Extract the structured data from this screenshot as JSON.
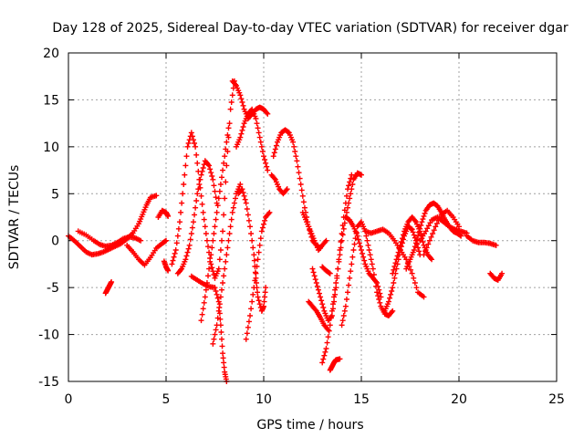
{
  "chart_data": {
    "type": "scatter",
    "title": "Day 128 of 2025, Sidereal Day-to-day VTEC variation (SDTVAR) for receiver dgar",
    "xlabel": "GPS time / hours",
    "ylabel": "SDTVAR / TECUs",
    "xlim": [
      0,
      25
    ],
    "ylim": [
      -15,
      20
    ],
    "xticks": [
      0,
      5,
      10,
      15,
      20,
      25
    ],
    "yticks": [
      -15,
      -10,
      -5,
      0,
      5,
      10,
      15,
      20
    ],
    "grid": true,
    "marker": "+",
    "series_color": "#ff0000",
    "series": [
      {
        "name": "t1",
        "x": [
          0.0,
          0.3,
          0.6,
          0.9,
          1.2,
          1.5,
          1.8,
          2.1,
          2.4,
          2.7,
          3.0,
          3.3,
          3.6,
          3.8,
          4.0,
          4.2,
          4.5
        ],
        "y": [
          0.5,
          0.0,
          -0.6,
          -1.2,
          -1.5,
          -1.4,
          -1.2,
          -0.9,
          -0.6,
          -0.3,
          0.2,
          0.8,
          1.8,
          2.8,
          3.8,
          4.6,
          4.8
        ]
      },
      {
        "name": "t2",
        "x": [
          0.5,
          0.9,
          1.3,
          1.6,
          1.9,
          2.2,
          2.5,
          2.8,
          3.1,
          3.4,
          3.7
        ],
        "y": [
          1.0,
          0.6,
          0.0,
          -0.4,
          -0.6,
          -0.5,
          -0.2,
          0.2,
          0.4,
          0.3,
          0.0
        ]
      },
      {
        "name": "t3",
        "x": [
          1.9,
          2.0,
          2.1,
          2.2
        ],
        "y": [
          -5.6,
          -5.2,
          -4.8,
          -4.4
        ]
      },
      {
        "name": "t4",
        "x": [
          3.0,
          3.3,
          3.6,
          3.9,
          4.2,
          4.5,
          4.8,
          5.0
        ],
        "y": [
          -0.5,
          -1.2,
          -2.0,
          -2.6,
          -1.8,
          -0.8,
          -0.3,
          0.0
        ]
      },
      {
        "name": "t5",
        "x": [
          4.6,
          4.8,
          5.0,
          5.1
        ],
        "y": [
          2.5,
          3.2,
          3.0,
          2.6
        ]
      },
      {
        "name": "t6",
        "x": [
          4.9,
          5.0,
          5.1
        ],
        "y": [
          -2.2,
          -2.8,
          -3.2
        ]
      },
      {
        "name": "t7",
        "x": [
          5.3,
          5.5,
          5.7,
          5.9,
          6.1,
          6.3,
          6.5,
          6.7,
          6.9,
          7.1,
          7.3,
          7.5,
          7.7,
          7.9,
          8.1,
          8.3,
          8.5
        ],
        "y": [
          -2.5,
          -1.0,
          2.0,
          6.0,
          10.0,
          11.5,
          10.0,
          6.5,
          3.0,
          0.0,
          -2.5,
          -4.0,
          -3.0,
          1.0,
          8.0,
          14.0,
          17.0
        ]
      },
      {
        "name": "t8",
        "x": [
          5.6,
          5.8,
          6.0,
          6.2,
          6.4,
          6.6,
          6.8,
          7.0,
          7.2,
          7.4,
          7.6
        ],
        "y": [
          -3.5,
          -3.0,
          -2.0,
          -0.5,
          2.0,
          5.0,
          7.0,
          8.5,
          8.0,
          6.5,
          4.0
        ]
      },
      {
        "name": "t9",
        "x": [
          6.3,
          6.6,
          6.9,
          7.2,
          7.5,
          7.7,
          7.8,
          7.9,
          8.0,
          8.1
        ],
        "y": [
          -3.8,
          -4.2,
          -4.6,
          -4.9,
          -5.0,
          -6.5,
          -9.0,
          -12.0,
          -14.0,
          -15.0
        ]
      },
      {
        "name": "t10",
        "x": [
          6.8,
          7.0,
          7.2,
          7.4,
          7.6,
          7.8,
          8.0,
          8.2
        ],
        "y": [
          -8.5,
          -6.0,
          -3.0,
          0.0,
          3.0,
          6.0,
          9.0,
          12.0
        ]
      },
      {
        "name": "t11",
        "x": [
          7.4,
          7.6,
          7.8,
          8.0,
          8.2,
          8.4,
          8.6,
          8.8
        ],
        "y": [
          -11.0,
          -9.0,
          -6.0,
          -3.0,
          0.0,
          3.0,
          5.0,
          6.0
        ]
      },
      {
        "name": "t12",
        "x": [
          8.4,
          8.6,
          8.8,
          9.0,
          9.2,
          9.4,
          9.6,
          9.8,
          10.0,
          10.2
        ],
        "y": [
          17.0,
          16.5,
          15.5,
          14.0,
          13.0,
          13.5,
          14.0,
          14.2,
          14.0,
          13.5
        ]
      },
      {
        "name": "t13",
        "x": [
          8.6,
          8.8,
          9.0,
          9.2,
          9.4,
          9.6,
          9.8,
          10.0,
          10.2
        ],
        "y": [
          10.0,
          11.0,
          12.5,
          13.5,
          14.0,
          13.0,
          11.0,
          9.0,
          7.5
        ]
      },
      {
        "name": "t14",
        "x": [
          8.7,
          8.9,
          9.1,
          9.3,
          9.5,
          9.6,
          9.7,
          9.9,
          10.0,
          10.1
        ],
        "y": [
          5.0,
          5.5,
          4.0,
          1.5,
          -1.5,
          -4.0,
          -6.0,
          -7.5,
          -7.0,
          -5.0
        ]
      },
      {
        "name": "t15",
        "x": [
          9.1,
          9.3,
          9.5,
          9.7,
          9.9,
          10.1,
          10.3
        ],
        "y": [
          -10.5,
          -8.0,
          -5.0,
          -2.0,
          1.0,
          2.5,
          3.0
        ]
      },
      {
        "name": "t16",
        "x": [
          10.5,
          10.7,
          10.9,
          11.1,
          11.3,
          11.5,
          11.7,
          11.9,
          12.1,
          12.3,
          12.5,
          12.7,
          12.9
        ],
        "y": [
          9.0,
          10.5,
          11.5,
          11.8,
          11.5,
          10.5,
          8.5,
          6.0,
          3.5,
          1.5,
          0.0,
          -0.5,
          -0.8
        ]
      },
      {
        "name": "t17",
        "x": [
          10.4,
          10.6,
          10.8,
          11.0,
          11.2
        ],
        "y": [
          7.0,
          6.5,
          5.5,
          5.0,
          5.5
        ]
      },
      {
        "name": "t18",
        "x": [
          12.0,
          12.2,
          12.4,
          12.6,
          12.8,
          13.0,
          13.2
        ],
        "y": [
          3.0,
          2.0,
          1.0,
          0.0,
          -1.0,
          -0.5,
          0.0
        ]
      },
      {
        "name": "t19",
        "x": [
          12.5,
          12.7,
          12.9,
          13.1,
          13.3,
          13.5,
          13.7,
          13.9,
          14.1,
          14.3,
          14.5
        ],
        "y": [
          -3.0,
          -4.5,
          -6.0,
          -7.5,
          -8.5,
          -8.0,
          -5.0,
          -1.0,
          2.5,
          5.5,
          7.0
        ]
      },
      {
        "name": "t20",
        "x": [
          12.3,
          12.5,
          12.7,
          12.9,
          13.1,
          13.3
        ],
        "y": [
          -6.5,
          -7.0,
          -7.5,
          -8.2,
          -9.0,
          -9.5
        ]
      },
      {
        "name": "t21",
        "x": [
          13.0,
          13.2,
          13.4,
          13.6,
          13.8,
          14.0,
          14.2,
          14.4,
          14.6,
          14.8,
          15.0
        ],
        "y": [
          -13.0,
          -11.5,
          -9.0,
          -6.0,
          -3.0,
          0.0,
          2.5,
          4.5,
          6.5,
          7.2,
          7.0
        ]
      },
      {
        "name": "t22",
        "x": [
          13.0,
          13.2,
          13.4
        ],
        "y": [
          -2.8,
          -3.2,
          -3.5
        ]
      },
      {
        "name": "t23",
        "x": [
          13.4,
          13.5,
          13.6,
          13.7,
          13.9
        ],
        "y": [
          -13.8,
          -13.4,
          -13.0,
          -12.7,
          -12.6
        ]
      },
      {
        "name": "t24",
        "x": [
          14.0,
          14.2,
          14.4,
          14.6,
          14.8,
          15.0,
          15.2,
          15.4,
          15.6,
          15.8,
          16.0,
          16.2,
          16.4,
          16.6
        ],
        "y": [
          -9.0,
          -7.0,
          -4.0,
          -1.0,
          1.5,
          2.0,
          1.0,
          -1.0,
          -3.0,
          -5.5,
          -7.0,
          -7.8,
          -8.0,
          -7.5
        ]
      },
      {
        "name": "t25",
        "x": [
          14.2,
          14.4,
          14.6,
          14.8,
          15.0,
          15.2,
          15.4,
          15.6,
          15.8,
          16.0
        ],
        "y": [
          2.5,
          2.2,
          1.5,
          0.5,
          -1.0,
          -2.5,
          -3.5,
          -4.0,
          -4.5,
          -6.0
        ]
      },
      {
        "name": "t26",
        "x": [
          15.2,
          15.5,
          15.8,
          16.1,
          16.4,
          16.7,
          17.0,
          17.3,
          17.6,
          17.9,
          18.2
        ],
        "y": [
          1.0,
          0.8,
          1.0,
          1.2,
          0.8,
          0.0,
          -1.0,
          -2.0,
          -3.5,
          -5.5,
          -6.0
        ]
      },
      {
        "name": "t27",
        "x": [
          16.2,
          16.4,
          16.6,
          16.8,
          17.0,
          17.2,
          17.4,
          17.6,
          17.8,
          18.0
        ],
        "y": [
          -7.5,
          -6.5,
          -5.0,
          -3.0,
          -1.0,
          0.5,
          1.5,
          1.2,
          0.0,
          -1.5
        ]
      },
      {
        "name": "t28",
        "x": [
          16.6,
          16.8,
          17.0,
          17.2,
          17.4,
          17.6,
          17.8,
          18.0,
          18.2,
          18.4,
          18.6
        ],
        "y": [
          -3.5,
          -2.0,
          -0.5,
          1.0,
          2.0,
          2.5,
          2.0,
          1.0,
          -0.5,
          -1.5,
          -2.0
        ]
      },
      {
        "name": "t29",
        "x": [
          17.3,
          17.5,
          17.7,
          17.9,
          18.1,
          18.3,
          18.5,
          18.7,
          18.9,
          19.1,
          19.3,
          19.5,
          19.7,
          19.9,
          20.1
        ],
        "y": [
          -3.0,
          -2.0,
          -1.0,
          0.5,
          2.0,
          3.2,
          3.8,
          4.0,
          3.7,
          3.0,
          2.2,
          1.5,
          1.0,
          0.8,
          0.5
        ]
      },
      {
        "name": "t30",
        "x": [
          18.0,
          18.3,
          18.6,
          18.9,
          19.2,
          19.5,
          19.8,
          20.1,
          20.4
        ],
        "y": [
          0.0,
          1.0,
          2.2,
          2.5,
          2.0,
          1.5,
          1.2,
          1.0,
          0.8
        ]
      },
      {
        "name": "t31",
        "x": [
          18.2,
          18.5,
          18.8,
          19.1,
          19.4,
          19.7,
          20.0
        ],
        "y": [
          -1.5,
          0.0,
          1.5,
          2.8,
          3.2,
          2.5,
          1.5
        ]
      },
      {
        "name": "t32",
        "x": [
          20.4,
          20.7,
          21.0,
          21.3,
          21.6,
          21.9
        ],
        "y": [
          0.5,
          0.0,
          -0.2,
          -0.2,
          -0.3,
          -0.5
        ]
      },
      {
        "name": "t33",
        "x": [
          21.6,
          21.8,
          22.0,
          22.2
        ],
        "y": [
          -3.5,
          -4.0,
          -4.2,
          -3.5
        ]
      }
    ]
  }
}
